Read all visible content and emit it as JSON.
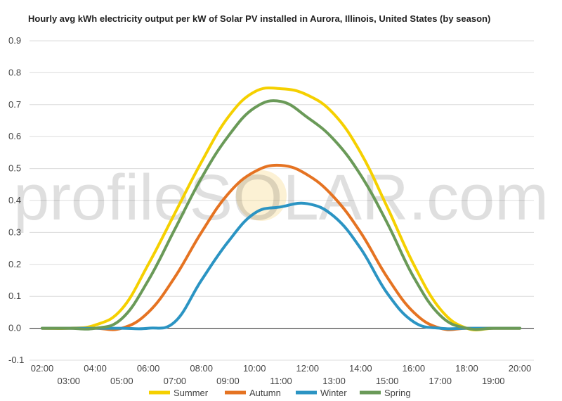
{
  "chart_data": {
    "type": "line",
    "title": "Hourly avg kWh electricity output per kW of Solar PV installed in Aurora, Illinois, United States (by season)",
    "x": [
      "02:00",
      "03:00",
      "04:00",
      "05:00",
      "06:00",
      "07:00",
      "08:00",
      "09:00",
      "10:00",
      "11:00",
      "12:00",
      "13:00",
      "14:00",
      "15:00",
      "16:00",
      "17:00",
      "18:00",
      "19:00",
      "20:00"
    ],
    "ylim": [
      -0.1,
      0.9
    ],
    "yticks": [
      "-0.1",
      "0.0",
      "0.1",
      "0.2",
      "0.3",
      "0.4",
      "0.5",
      "0.6",
      "0.7",
      "0.8",
      "0.9"
    ],
    "grid": true,
    "legend": "bottom",
    "watermark": "profileSOLAR.com",
    "series": [
      {
        "name": "Summer",
        "color": "#f5d000",
        "values": [
          0.0,
          0.0,
          0.01,
          0.06,
          0.2,
          0.36,
          0.52,
          0.66,
          0.74,
          0.75,
          0.73,
          0.67,
          0.55,
          0.38,
          0.2,
          0.06,
          0.0,
          0.0,
          0.0
        ]
      },
      {
        "name": "Autumn",
        "color": "#e57322",
        "values": [
          0.0,
          0.0,
          0.0,
          0.0,
          0.05,
          0.16,
          0.3,
          0.42,
          0.49,
          0.51,
          0.48,
          0.41,
          0.3,
          0.16,
          0.05,
          0.0,
          0.0,
          0.0,
          0.0
        ]
      },
      {
        "name": "Winter",
        "color": "#2b94c3",
        "values": [
          0.0,
          0.0,
          0.0,
          0.0,
          0.0,
          0.02,
          0.15,
          0.27,
          0.36,
          0.38,
          0.39,
          0.35,
          0.25,
          0.11,
          0.02,
          0.0,
          0.0,
          0.0,
          0.0
        ]
      },
      {
        "name": "Spring",
        "color": "#6a9a58",
        "values": [
          0.0,
          0.0,
          0.0,
          0.03,
          0.15,
          0.31,
          0.47,
          0.6,
          0.69,
          0.71,
          0.66,
          0.59,
          0.48,
          0.33,
          0.16,
          0.04,
          0.0,
          0.0,
          0.0
        ]
      }
    ]
  }
}
